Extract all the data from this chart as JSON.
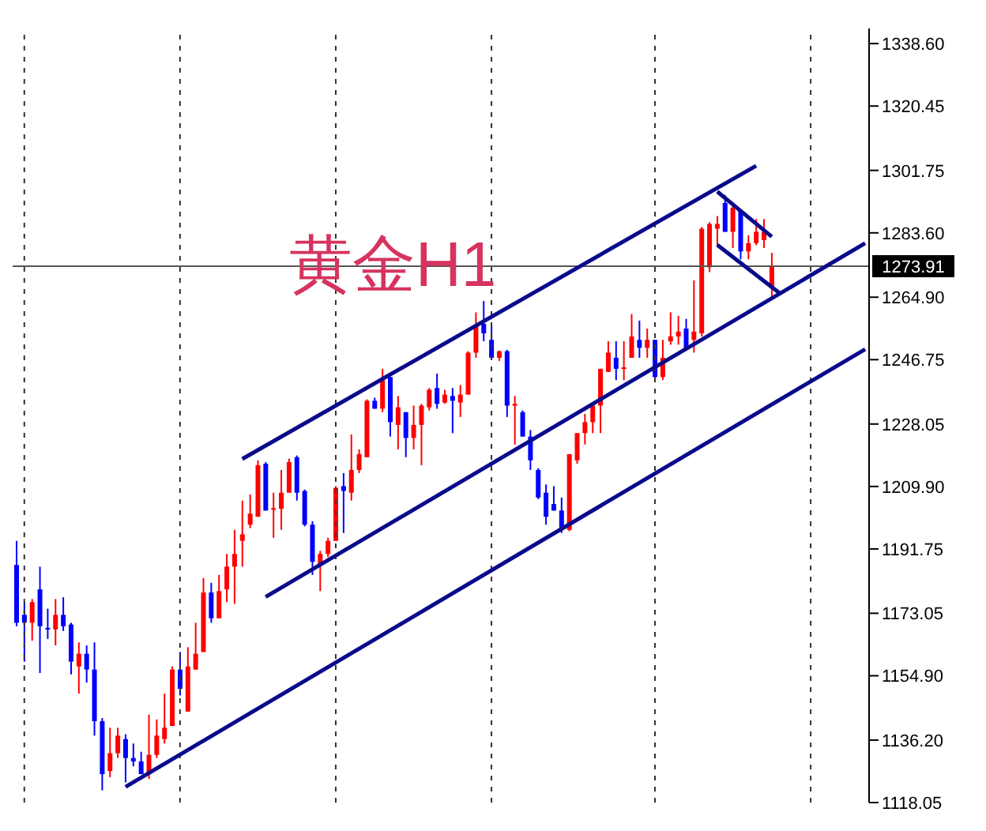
{
  "chart_data": {
    "type": "candlestick",
    "title": "黄金H1",
    "categories": [
      null,
      null,
      null,
      null,
      null,
      null,
      null,
      null,
      null,
      null,
      null,
      null,
      null,
      null,
      null,
      null,
      null,
      null,
      null,
      null,
      null,
      null,
      null,
      null,
      null,
      null,
      null,
      null,
      null,
      null,
      null,
      null,
      null,
      null,
      null,
      null,
      null,
      null,
      null,
      null,
      null,
      null,
      null,
      null,
      null,
      null,
      null,
      null,
      null,
      null,
      null,
      null,
      null,
      null,
      null,
      null,
      null,
      null,
      null,
      null,
      null,
      null,
      null,
      null,
      null,
      null,
      null,
      null,
      null,
      null,
      null,
      null,
      null,
      null,
      null,
      null,
      null,
      null,
      null,
      null,
      null,
      null,
      null,
      null,
      null,
      null,
      null,
      null,
      null,
      null,
      null,
      null,
      null,
      null,
      null,
      null,
      null,
      null,
      null,
      null,
      null,
      null,
      null,
      null,
      null,
      null,
      null,
      null,
      null,
      null
    ],
    "ohlc": [
      [
        1187.1,
        1194.1,
        1169.3,
        1170.3
      ],
      [
        1172.6,
        1176.3,
        1159.0,
        1170.3
      ],
      [
        1170.3,
        1177.2,
        1165.1,
        1176.3
      ],
      [
        1180.0,
        1186.6,
        1155.7,
        1169.3
      ],
      [
        1168.8,
        1174.4,
        1165.6,
        1168.4
      ],
      [
        1168.4,
        1177.2,
        1163.7,
        1172.6
      ],
      [
        1172.6,
        1177.7,
        1167.9,
        1169.3
      ],
      [
        1169.8,
        1170.3,
        1155.3,
        1159.0
      ],
      [
        1157.6,
        1164.6,
        1149.7,
        1161.3
      ],
      [
        1161.3,
        1163.7,
        1152.9,
        1156.7
      ],
      [
        1156.7,
        1164.6,
        1137.5,
        1141.7
      ],
      [
        1141.7,
        1142.6,
        1121.6,
        1126.3
      ],
      [
        1127.2,
        1139.8,
        1125.4,
        1132.4
      ],
      [
        1132.4,
        1139.8,
        1131.0,
        1137.5
      ],
      [
        1136.5,
        1137.9,
        1123.9,
        1131.0
      ],
      [
        1131.0,
        1135.2,
        1128.6,
        1130.0
      ],
      [
        1130.0,
        1132.8,
        1126.3,
        1126.3
      ],
      [
        1126.3,
        1143.6,
        1124.9,
        1131.9
      ],
      [
        1131.9,
        1142.2,
        1131.0,
        1137.5
      ],
      [
        1136.5,
        1149.7,
        1135.2,
        1139.8
      ],
      [
        1140.3,
        1157.6,
        1140.3,
        1156.7
      ],
      [
        1156.7,
        1161.8,
        1149.2,
        1151.1
      ],
      [
        1144.5,
        1163.2,
        1144.5,
        1157.6
      ],
      [
        1156.7,
        1170.3,
        1156.7,
        1161.3
      ],
      [
        1161.8,
        1183.3,
        1161.8,
        1179.1
      ],
      [
        1179.1,
        1181.9,
        1170.3,
        1171.6
      ],
      [
        1171.6,
        1184.2,
        1171.6,
        1179.5
      ],
      [
        1180.0,
        1190.3,
        1176.3,
        1186.6
      ],
      [
        1186.6,
        1197.3,
        1175.8,
        1190.3
      ],
      [
        1194.1,
        1205.8,
        1186.6,
        1196.0
      ],
      [
        1198.8,
        1207.6,
        1197.8,
        1202.0
      ],
      [
        1201.1,
        1217.5,
        1201.1,
        1216.1
      ],
      [
        1216.5,
        1217.0,
        1202.9,
        1202.9
      ],
      [
        1203.2,
        1208.1,
        1195.0,
        1203.6
      ],
      [
        1203.4,
        1214.7,
        1197.3,
        1208.1
      ],
      [
        1208.1,
        1218.0,
        1208.1,
        1217.0
      ],
      [
        1218.4,
        1218.9,
        1205.8,
        1208.1
      ],
      [
        1208.6,
        1209.0,
        1198.3,
        1198.8
      ],
      [
        1198.8,
        1199.8,
        1184.2,
        1188.0
      ],
      [
        1187.0,
        1191.2,
        1179.5,
        1190.3
      ],
      [
        1190.3,
        1195.0,
        1189.4,
        1194.1
      ],
      [
        1194.1,
        1210.0,
        1194.1,
        1209.5
      ],
      [
        1210.0,
        1213.8,
        1196.4,
        1208.6
      ],
      [
        1208.1,
        1225.0,
        1205.8,
        1214.7
      ],
      [
        1214.7,
        1220.7,
        1213.8,
        1219.3
      ],
      [
        1218.4,
        1235.2,
        1218.4,
        1234.8
      ],
      [
        1234.8,
        1235.7,
        1232.5,
        1232.5
      ],
      [
        1232.5,
        1244.1,
        1231.5,
        1240.8
      ],
      [
        1241.7,
        1241.7,
        1224.4,
        1228.6
      ],
      [
        1227.8,
        1236.2,
        1220.7,
        1232.9
      ],
      [
        1231.5,
        1231.5,
        1218.4,
        1224.0
      ],
      [
        1224.0,
        1233.4,
        1220.7,
        1227.8
      ],
      [
        1227.8,
        1233.9,
        1216.1,
        1233.4
      ],
      [
        1232.9,
        1238.5,
        1232.0,
        1238.0
      ],
      [
        1238.5,
        1242.7,
        1232.5,
        1233.9
      ],
      [
        1234.3,
        1238.0,
        1233.9,
        1236.6
      ],
      [
        1236.2,
        1238.5,
        1225.4,
        1234.8
      ],
      [
        1234.3,
        1239.4,
        1230.1,
        1236.6
      ],
      [
        1236.6,
        1249.2,
        1236.6,
        1248.8
      ],
      [
        1248.8,
        1260.5,
        1247.3,
        1256.7
      ],
      [
        1257.2,
        1263.8,
        1252.1,
        1254.4
      ],
      [
        1252.5,
        1256.7,
        1247.3,
        1247.3
      ],
      [
        1247.3,
        1249.4,
        1246.4,
        1249.2
      ],
      [
        1249.2,
        1249.6,
        1230.1,
        1233.4
      ],
      [
        1233.4,
        1236.2,
        1222.1,
        1233.9
      ],
      [
        1231.5,
        1232.0,
        1224.4,
        1224.4
      ],
      [
        1224.4,
        1226.3,
        1214.7,
        1217.5
      ],
      [
        1214.7,
        1215.2,
        1206.2,
        1206.7
      ],
      [
        1208.1,
        1210.5,
        1198.8,
        1201.1
      ],
      [
        1204.8,
        1210.0,
        1202.9,
        1202.9
      ],
      [
        1202.9,
        1206.7,
        1196.4,
        1197.3
      ],
      [
        1197.3,
        1219.3,
        1196.9,
        1219.3
      ],
      [
        1217.5,
        1225.4,
        1216.5,
        1225.4
      ],
      [
        1225.4,
        1231.0,
        1222.1,
        1228.6
      ],
      [
        1228.6,
        1233.4,
        1225.4,
        1233.4
      ],
      [
        1233.4,
        1244.1,
        1225.4,
        1244.1
      ],
      [
        1243.2,
        1252.1,
        1243.2,
        1248.8
      ],
      [
        1247.3,
        1252.1,
        1240.8,
        1244.1
      ],
      [
        1244.1,
        1252.1,
        1240.8,
        1244.5
      ],
      [
        1247.3,
        1260.0,
        1247.3,
        1253.5
      ],
      [
        1252.5,
        1258.1,
        1247.3,
        1250.2
      ],
      [
        1250.2,
        1255.8,
        1247.3,
        1252.5
      ],
      [
        1252.5,
        1252.5,
        1240.8,
        1241.7
      ],
      [
        1241.7,
        1252.5,
        1240.8,
        1247.3
      ],
      [
        1252.1,
        1260.5,
        1251.1,
        1253.5
      ],
      [
        1253.5,
        1259.5,
        1251.1,
        1254.9
      ],
      [
        1255.8,
        1258.6,
        1249.7,
        1250.2
      ],
      [
        1252.5,
        1269.8,
        1248.8,
        1254.9
      ],
      [
        1254.4,
        1285.3,
        1253.5,
        1284.8
      ],
      [
        1273.6,
        1286.7,
        1272.2,
        1286.2
      ],
      [
        1284.8,
        1288.5,
        1280.0,
        1286.2
      ],
      [
        1292.3,
        1294.6,
        1283.9,
        1283.9
      ],
      [
        1283.9,
        1292.3,
        1279.2,
        1290.9
      ],
      [
        1289.9,
        1290.4,
        1275.9,
        1278.2
      ],
      [
        1278.2,
        1282.9,
        1275.9,
        1280.6
      ],
      [
        1280.6,
        1287.6,
        1280.0,
        1283.9
      ],
      [
        1281.5,
        1287.6,
        1279.2,
        1283.9
      ],
      [
        1267.5,
        1277.8,
        1264.2,
        1273.9
      ],
      null,
      null,
      null,
      null,
      null,
      null,
      null,
      null,
      null,
      null,
      null,
      null
    ],
    "colors": [
      "#0000ff",
      "#0000ff",
      "#ff0000",
      "#0000ff",
      "#0000ff",
      "#ff0000",
      "#0000ff",
      "#0000ff",
      "#ff0000",
      "#0000ff",
      "#0000ff",
      "#0000ff",
      "#ff0000",
      "#ff0000",
      "#0000ff",
      "#0000ff",
      "#0000ff",
      "#ff0000",
      "#ff0000",
      "#ff0000",
      "#ff0000",
      "#0000ff",
      "#ff0000",
      "#ff0000",
      "#ff0000",
      "#0000ff",
      "#ff0000",
      "#ff0000",
      "#ff0000",
      "#ff0000",
      "#ff0000",
      "#ff0000",
      "#0000ff",
      "#ff0000",
      "#ff0000",
      "#ff0000",
      "#0000ff",
      "#0000ff",
      "#0000ff",
      "#ff0000",
      "#ff0000",
      "#ff0000",
      "#0000ff",
      "#ff0000",
      "#ff0000",
      "#ff0000",
      "#0000ff",
      "#ff0000",
      "#0000ff",
      "#ff0000",
      "#0000ff",
      "#ff0000",
      "#ff0000",
      "#ff0000",
      "#0000ff",
      "#ff0000",
      "#0000ff",
      "#ff0000",
      "#ff0000",
      "#ff0000",
      "#0000ff",
      "#0000ff",
      "#ff0000",
      "#0000ff",
      "#ff0000",
      "#0000ff",
      "#0000ff",
      "#0000ff",
      "#0000ff",
      "#0000ff",
      "#0000ff",
      "#ff0000",
      "#ff0000",
      "#ff0000",
      "#ff0000",
      "#ff0000",
      "#ff0000",
      "#0000ff",
      "#ff0000",
      "#ff0000",
      "#0000ff",
      "#ff0000",
      "#0000ff",
      "#ff0000",
      "#ff0000",
      "#ff0000",
      "#0000ff",
      "#ff0000",
      "#ff0000",
      "#ff0000",
      "#ff0000",
      "#0000ff",
      "#ff0000",
      "#0000ff",
      "#ff0000",
      "#ff0000",
      "#ff0000",
      "#ff0000",
      null,
      null,
      null,
      null,
      null,
      null,
      null,
      null,
      null,
      null,
      null,
      null
    ],
    "series": [
      {
        "type": "line",
        "color": "#0a0a8c",
        "values": [
          null,
          null,
          null,
          null,
          null,
          null,
          null,
          null,
          null,
          null,
          null,
          null,
          null,
          null,
          null,
          null,
          null,
          null,
          null,
          null,
          null,
          null,
          null,
          null,
          null,
          null,
          null,
          null,
          null,
          1217.9,
          null,
          null,
          null,
          null,
          null,
          null,
          null,
          null,
          null,
          null,
          null,
          null,
          null,
          null,
          null,
          null,
          null,
          null,
          null,
          null,
          null,
          null,
          null,
          null,
          null,
          null,
          null,
          null,
          null,
          null,
          null,
          null,
          null,
          null,
          null,
          null,
          null,
          null,
          null,
          null,
          null,
          null,
          null,
          null,
          null,
          null,
          null,
          null,
          null,
          null,
          null,
          null,
          null,
          null,
          null,
          null,
          null,
          null,
          null,
          null,
          null,
          null,
          null,
          null,
          null,
          1303.1,
          null,
          null,
          null,
          null,
          null,
          null,
          null,
          null,
          null,
          null,
          null,
          null,
          null,
          null
        ]
      },
      {
        "type": "line",
        "color": "#0a0a8c",
        "values": [
          null,
          null,
          null,
          null,
          null,
          null,
          null,
          null,
          null,
          null,
          null,
          null,
          null,
          null,
          null,
          null,
          null,
          null,
          null,
          null,
          null,
          null,
          null,
          null,
          null,
          null,
          null,
          null,
          null,
          null,
          null,
          null,
          1177.8,
          null,
          null,
          null,
          null,
          null,
          null,
          null,
          null,
          null,
          null,
          null,
          null,
          null,
          null,
          null,
          null,
          null,
          null,
          null,
          null,
          null,
          null,
          null,
          null,
          null,
          null,
          null,
          null,
          null,
          null,
          null,
          null,
          null,
          null,
          null,
          null,
          null,
          null,
          null,
          null,
          null,
          null,
          null,
          null,
          null,
          null,
          null,
          null,
          null,
          null,
          null,
          null,
          null,
          null,
          null,
          null,
          null,
          null,
          null,
          null,
          null,
          null,
          null,
          null,
          null,
          null,
          null,
          null,
          null,
          null,
          null,
          null,
          null,
          null,
          null,
          null,
          1280.6
        ]
      },
      {
        "type": "line",
        "color": "#0a0a8c",
        "values": [
          null,
          null,
          null,
          null,
          null,
          null,
          null,
          null,
          null,
          null,
          null,
          null,
          null,
          null,
          1122.6,
          null,
          null,
          null,
          null,
          null,
          null,
          null,
          null,
          null,
          null,
          null,
          null,
          null,
          null,
          null,
          null,
          null,
          null,
          null,
          null,
          null,
          null,
          null,
          null,
          null,
          null,
          null,
          null,
          null,
          null,
          null,
          null,
          null,
          null,
          null,
          null,
          null,
          null,
          null,
          null,
          null,
          null,
          null,
          null,
          null,
          null,
          null,
          null,
          null,
          null,
          null,
          null,
          null,
          null,
          null,
          null,
          null,
          null,
          null,
          null,
          null,
          null,
          null,
          null,
          null,
          null,
          null,
          null,
          null,
          null,
          null,
          null,
          null,
          null,
          null,
          null,
          null,
          null,
          null,
          null,
          null,
          null,
          null,
          null,
          null,
          null,
          null,
          null,
          null,
          null,
          null,
          null,
          null,
          null,
          1249.8
        ]
      },
      {
        "type": "line",
        "color": "#0a0a8c",
        "values": [
          null,
          null,
          null,
          null,
          null,
          null,
          null,
          null,
          null,
          null,
          null,
          null,
          null,
          null,
          null,
          null,
          null,
          null,
          null,
          null,
          null,
          null,
          null,
          null,
          null,
          null,
          null,
          null,
          null,
          null,
          null,
          null,
          null,
          null,
          null,
          null,
          null,
          null,
          null,
          null,
          null,
          null,
          null,
          null,
          null,
          null,
          null,
          null,
          null,
          null,
          null,
          null,
          null,
          null,
          null,
          null,
          null,
          null,
          null,
          null,
          null,
          null,
          null,
          null,
          null,
          null,
          null,
          null,
          null,
          null,
          null,
          null,
          null,
          null,
          null,
          null,
          null,
          null,
          null,
          null,
          null,
          null,
          null,
          null,
          null,
          null,
          null,
          null,
          null,
          null,
          1295.6,
          null,
          null,
          null,
          null,
          null,
          null,
          1282.5,
          null,
          null,
          null,
          null,
          null,
          null,
          null,
          null,
          null,
          null,
          null,
          null
        ]
      },
      {
        "type": "line",
        "color": "#0a0a8c",
        "values": [
          null,
          null,
          null,
          null,
          null,
          null,
          null,
          null,
          null,
          null,
          null,
          null,
          null,
          null,
          null,
          null,
          null,
          null,
          null,
          null,
          null,
          null,
          null,
          null,
          null,
          null,
          null,
          null,
          null,
          null,
          null,
          null,
          null,
          null,
          null,
          null,
          null,
          null,
          null,
          null,
          null,
          null,
          null,
          null,
          null,
          null,
          null,
          null,
          null,
          null,
          null,
          null,
          null,
          null,
          null,
          null,
          null,
          null,
          null,
          null,
          null,
          null,
          null,
          null,
          null,
          null,
          null,
          null,
          null,
          null,
          null,
          null,
          null,
          null,
          null,
          null,
          null,
          null,
          null,
          null,
          null,
          null,
          null,
          null,
          null,
          null,
          null,
          null,
          null,
          null,
          1280.1,
          null,
          null,
          null,
          null,
          null,
          null,
          null,
          1266.1,
          null,
          null,
          null,
          null,
          null,
          null,
          null,
          null,
          null,
          null,
          null
        ]
      }
    ],
    "ref_lines": [
      {
        "axis": "y",
        "value": 1273.91,
        "label": "1273.91",
        "color": "#555555"
      }
    ],
    "ylim": [
      1118.05,
      1343
    ],
    "yticks": [
      {
        "value": 1118.05,
        "label": "1118.05"
      },
      {
        "value": 1136.2,
        "label": "1136.20"
      },
      {
        "value": 1154.9,
        "label": "1154.90"
      },
      {
        "value": 1173.05,
        "label": "1173.05"
      },
      {
        "value": 1191.75,
        "label": "1191.75"
      },
      {
        "value": 1209.9,
        "label": "1209.90"
      },
      {
        "value": 1228.05,
        "label": "1228.05"
      },
      {
        "value": 1246.75,
        "label": "1246.75"
      },
      {
        "value": 1264.9,
        "label": "1264.90"
      },
      {
        "value": 1283.6,
        "label": "1283.60"
      },
      {
        "value": 1301.75,
        "label": "1301.75"
      },
      {
        "value": 1320.45,
        "label": "1320.45"
      },
      {
        "value": 1338.6,
        "label": "1338.60"
      }
    ],
    "tick_labels": "y",
    "grid": "x"
  }
}
